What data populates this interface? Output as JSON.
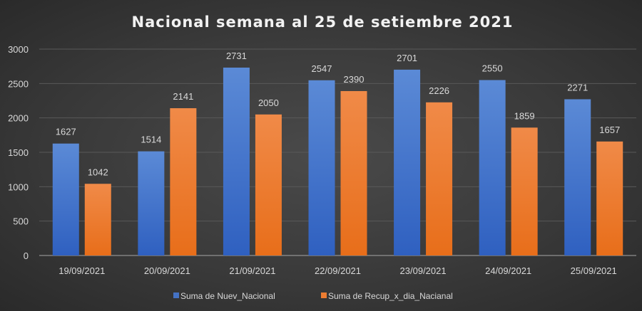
{
  "chart_data": {
    "type": "bar",
    "title": "Nacional semana al 25 de setiembre 2021",
    "categories": [
      "19/09/2021",
      "20/09/2021",
      "21/09/2021",
      "22/09/2021",
      "23/09/2021",
      "24/09/2021",
      "25/09/2021"
    ],
    "series": [
      {
        "name": "Suma de Nuev_Nacional",
        "color": "#4472c4",
        "values": [
          1627,
          1514,
          2731,
          2547,
          2701,
          2550,
          2271
        ]
      },
      {
        "name": "Suma de Recup_x_dia_Nacianal",
        "color": "#ed7d31",
        "values": [
          1042,
          2141,
          2050,
          2390,
          2226,
          1859,
          1657
        ]
      }
    ],
    "yticks": [
      0,
      500,
      1000,
      1500,
      2000,
      2500,
      3000
    ],
    "ylim": [
      0,
      3000
    ],
    "xlabel": "",
    "ylabel": "",
    "grid": true,
    "legend": "bottom"
  }
}
